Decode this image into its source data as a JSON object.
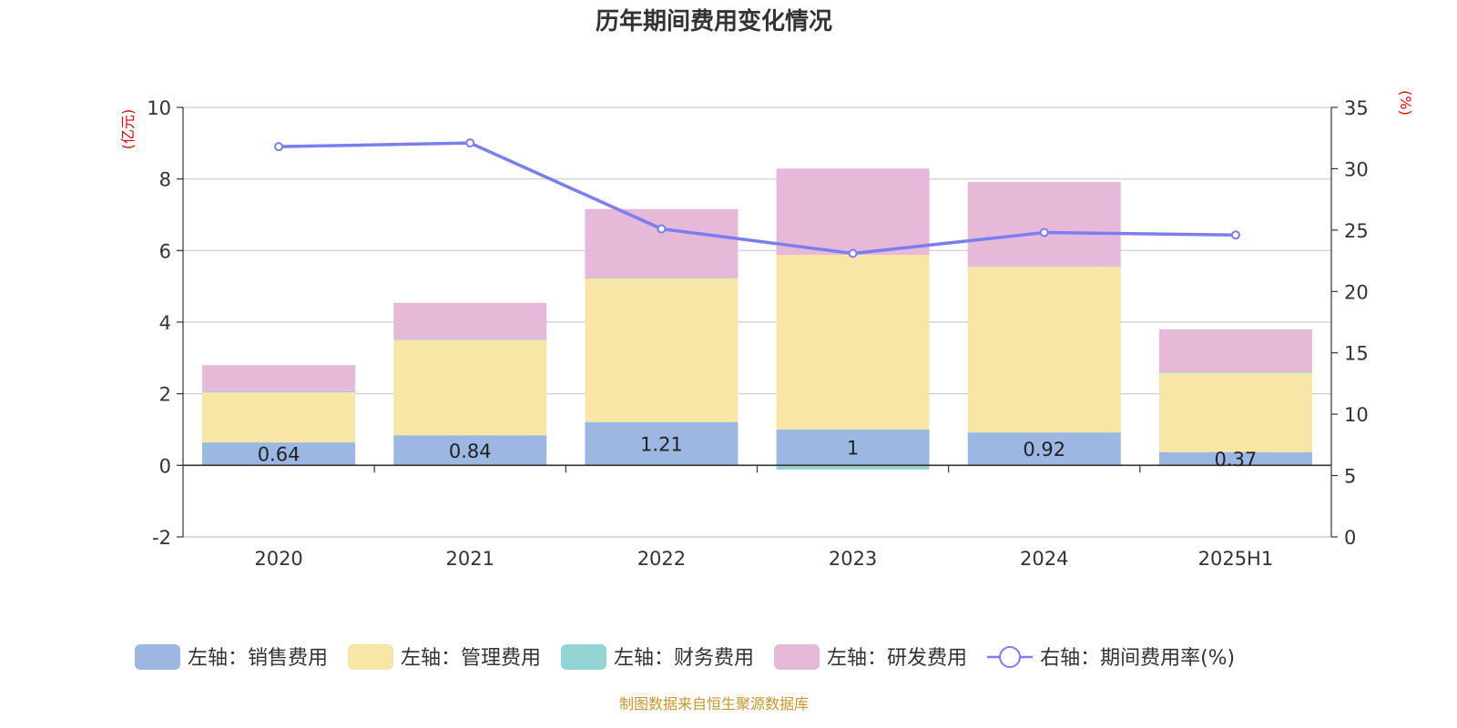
{
  "chart_data": {
    "type": "bar",
    "title": "历年期间费用变化情况",
    "categories": [
      "2020",
      "2021",
      "2022",
      "2023",
      "2024",
      "2025H1"
    ],
    "left_axis": {
      "unit": "(亿元)",
      "ylim": [
        -2,
        10
      ],
      "ticks": [
        -2,
        0,
        2,
        4,
        6,
        8,
        10
      ]
    },
    "right_axis": {
      "unit": "(%)",
      "ylim": [
        0,
        35
      ],
      "ticks": [
        0,
        5,
        10,
        15,
        20,
        25,
        30,
        35
      ]
    },
    "stacked": true,
    "grid": true,
    "legend_position": "bottom",
    "series": [
      {
        "name": "左轴：销售费用",
        "axis": "left",
        "kind": "bar",
        "color": "#9bb7e2",
        "values": [
          0.64,
          0.84,
          1.21,
          1.0,
          0.92,
          0.37
        ],
        "labels": [
          "0.64",
          "0.84",
          "1.21",
          "1",
          "0.92",
          "0.37"
        ]
      },
      {
        "name": "左轴：管理费用",
        "axis": "left",
        "kind": "bar",
        "color": "#f7e6a6",
        "values": [
          1.4,
          2.66,
          4.01,
          4.88,
          4.63,
          2.21
        ]
      },
      {
        "name": "左轴：财务费用",
        "axis": "left",
        "kind": "bar",
        "color": "#94d4d4",
        "values": [
          0.03,
          0.02,
          0.02,
          -0.12,
          0.01,
          0.02
        ]
      },
      {
        "name": "左轴：研发费用",
        "axis": "left",
        "kind": "bar",
        "color": "#e7b9d9",
        "values": [
          0.73,
          1.02,
          1.92,
          2.41,
          2.36,
          1.2
        ]
      },
      {
        "name": "右轴：期间费用率(%)",
        "axis": "right",
        "kind": "line",
        "color": "#7b7ef0",
        "values": [
          31.8,
          32.1,
          25.1,
          23.1,
          24.8,
          24.6
        ]
      }
    ],
    "source_note": "制图数据来自恒生聚源数据库"
  }
}
